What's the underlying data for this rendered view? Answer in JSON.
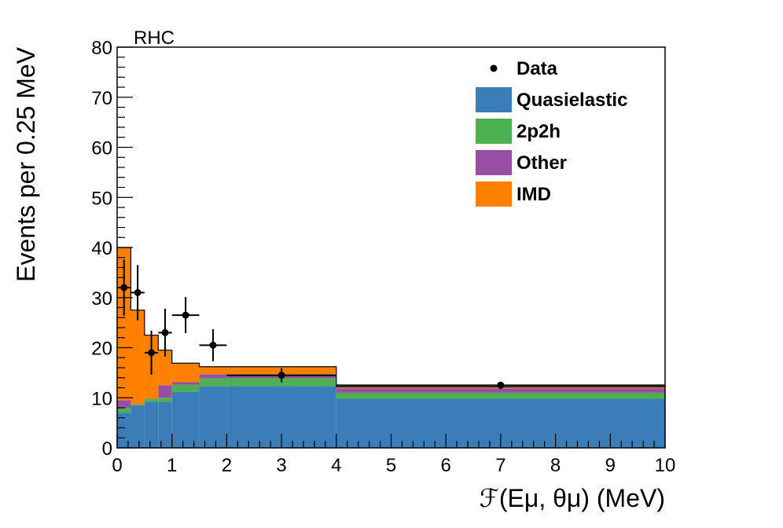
{
  "chart_data": {
    "type": "bar",
    "annotation": "RHC",
    "ylabel": "Events per 0.25 MeV",
    "xlabel": "ℱ(Eμ, θμ)   (MeV)",
    "xlim": [
      0,
      10
    ],
    "ylim": [
      0,
      80
    ],
    "x_ticks": [
      "0",
      "1",
      "2",
      "3",
      "4",
      "5",
      "6",
      "7",
      "8",
      "9",
      "10"
    ],
    "y_ticks": [
      "0",
      "10",
      "20",
      "30",
      "40",
      "50",
      "60",
      "70",
      "80"
    ],
    "bin_edges": [
      0,
      0.25,
      0.5,
      0.75,
      1.0,
      1.5,
      2.0,
      4.0,
      10.0
    ],
    "stack": [
      {
        "name": "Quasielastic",
        "color": "#3A7DB8",
        "values": [
          7.0,
          8.5,
          9.2,
          9.2,
          11.2,
          12.3,
          12.3,
          9.8
        ]
      },
      {
        "name": "2p2h",
        "color": "#4CAF50",
        "values": [
          1.0,
          0.2,
          0.6,
          0.8,
          1.4,
          1.6,
          1.6,
          1.2
        ]
      },
      {
        "name": "Other",
        "color": "#984EA3",
        "values": [
          1.5,
          0.0,
          0.0,
          2.5,
          0.5,
          0.8,
          0.8,
          0.9
        ]
      },
      {
        "name": "IMD",
        "color": "#FF7F00",
        "values": [
          30.5,
          18.8,
          12.7,
          7.0,
          3.8,
          1.5,
          1.5,
          0.3
        ]
      }
    ],
    "data_points": [
      {
        "x": 0.125,
        "y": 32.0,
        "xerr": 0.125,
        "yerr": 5.6
      },
      {
        "x": 0.375,
        "y": 31.0,
        "xerr": 0.125,
        "yerr": 5.5
      },
      {
        "x": 0.625,
        "y": 19.0,
        "xerr": 0.125,
        "yerr": 4.4
      },
      {
        "x": 0.875,
        "y": 23.0,
        "xerr": 0.125,
        "yerr": 4.8
      },
      {
        "x": 1.25,
        "y": 26.5,
        "xerr": 0.25,
        "yerr": 3.6
      },
      {
        "x": 1.75,
        "y": 20.5,
        "xerr": 0.25,
        "yerr": 3.2
      },
      {
        "x": 3.0,
        "y": 14.5,
        "xerr": 1.0,
        "yerr": 1.4
      },
      {
        "x": 7.0,
        "y": 12.5,
        "xerr": 3.0,
        "yerr": 0.7
      }
    ],
    "legend": {
      "placement": "top-right",
      "entries": [
        {
          "label": "Data",
          "marker": "point"
        },
        {
          "label": "Quasielastic",
          "color": "#3A7DB8"
        },
        {
          "label": "2p2h",
          "color": "#4CAF50"
        },
        {
          "label": "Other",
          "color": "#984EA3"
        },
        {
          "label": "IMD",
          "color": "#FF7F00"
        }
      ]
    },
    "grid": false
  }
}
